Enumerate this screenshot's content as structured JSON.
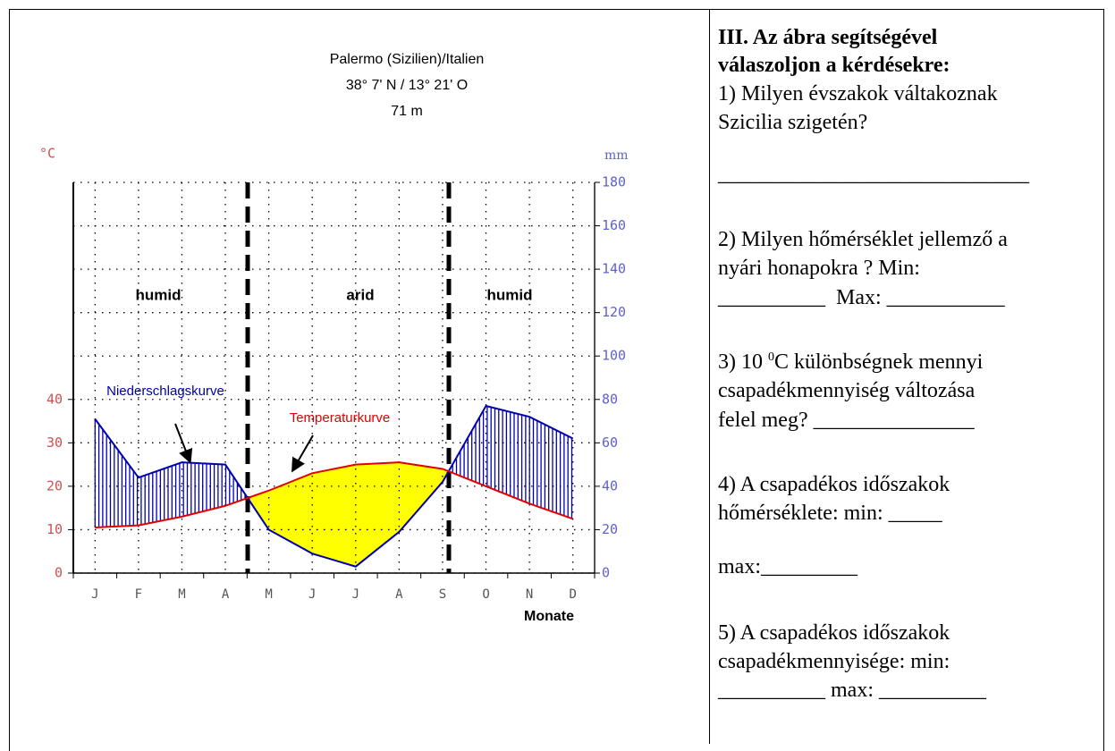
{
  "chart_data": {
    "type": "line",
    "title_lines": [
      "Palermo (Sizilien)/Italien",
      "38° 7' N / 13° 21' O",
      "71 m"
    ],
    "categories": [
      "J",
      "F",
      "M",
      "A",
      "M",
      "J",
      "J",
      "A",
      "S",
      "O",
      "N",
      "D"
    ],
    "xlabel": "Monate",
    "ylabel": "°C",
    "y2label": "mm",
    "ylim": [
      0,
      90
    ],
    "yticks": [
      0,
      10,
      20,
      30,
      40
    ],
    "y2lim": [
      0,
      180
    ],
    "y2ticks": [
      0,
      20,
      40,
      60,
      80,
      100,
      120,
      140,
      160,
      180
    ],
    "grid": true,
    "series": [
      {
        "name": "Temperaturkurve",
        "color": "#e00000",
        "values": [
          10.5,
          11,
          13,
          15.5,
          19,
          23,
          25,
          25.5,
          24,
          20,
          16,
          12.5
        ]
      },
      {
        "name": "Niederschlagskurve",
        "color": "#0000b0",
        "axis": "y2",
        "values": [
          71,
          44,
          51,
          50,
          20,
          9,
          3,
          19,
          42,
          77,
          72,
          62
        ]
      }
    ],
    "annotations": [
      "humid",
      "arid",
      "humid"
    ],
    "arid_color": "#ffff00",
    "humid_color": "#0000b0"
  },
  "worksheet": {
    "heading": [
      "III. Az ábra segítségével",
      "válaszoljon a kérdésekre:"
    ],
    "questions": [
      {
        "lines": [
          "1) Milyen évszakok váltakoznak",
          "Szicilia szigetén?",
          "_____________________________"
        ]
      },
      {
        "lines": [
          "2) Milyen hőmérséklet jellemző a",
          "nyári honapokra ? Min:",
          "__________  Max: ___________"
        ]
      },
      {
        "lines": [
          {
            "before": "3) 10 ",
            "sup": "0",
            "after": "C különbségnek mennyi"
          },
          "csapadékmennyiség változása",
          "felel meg? _______________"
        ]
      },
      {
        "lines": [
          "4) A csapadékos időszakok",
          "hőmérséklete: min: _____",
          "max:_________"
        ]
      },
      {
        "lines": [
          "5) A csapadékos időszakok",
          "csapadékmennyisége: min:",
          "__________ max: __________"
        ]
      }
    ]
  }
}
